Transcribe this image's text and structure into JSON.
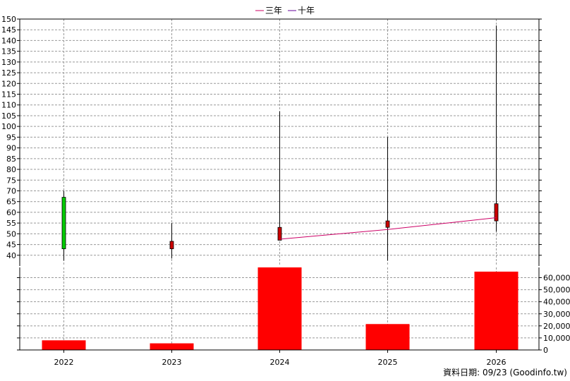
{
  "chart_data": [
    {
      "type": "candlestick",
      "x": [
        "2022",
        "2023",
        "2024",
        "2025",
        "2026"
      ],
      "ylim": [
        35,
        150
      ],
      "y_ticks": [
        40,
        45,
        50,
        55,
        60,
        65,
        70,
        75,
        80,
        85,
        90,
        95,
        100,
        105,
        110,
        115,
        120,
        125,
        130,
        135,
        140,
        145,
        150
      ],
      "grid": true,
      "legend": "top-center",
      "legend_entries": [
        {
          "name": "三年",
          "color": "#cc0066"
        },
        {
          "name": "十年",
          "color": "#660099"
        }
      ],
      "candles": [
        {
          "x": "2022",
          "open": 43,
          "high": 70,
          "low": 37.5,
          "close": 67,
          "color": "#00cc00"
        },
        {
          "x": "2023",
          "open": 46.5,
          "high": 55,
          "low": 38.5,
          "close": 43,
          "color": "#cc0000"
        },
        {
          "x": "2024",
          "open": 53,
          "high": 107,
          "low": 47,
          "close": 47,
          "color": "#cc0000"
        },
        {
          "x": "2025",
          "open": 56,
          "high": 95,
          "low": 37.5,
          "close": 53,
          "color": "#cc0000"
        },
        {
          "x": "2026",
          "open": 64,
          "high": 147,
          "low": 51,
          "close": 56,
          "color": "#cc0000"
        }
      ],
      "series": [
        {
          "name": "三年",
          "color": "#cc0066",
          "x": [
            "2024",
            "2025",
            "2026"
          ],
          "values": [
            47.5,
            52,
            57.5
          ]
        }
      ]
    },
    {
      "type": "bar",
      "categories": [
        "2022",
        "2023",
        "2024",
        "2025",
        "2026"
      ],
      "values": [
        8000,
        5500,
        68500,
        21500,
        65000
      ],
      "ylim": [
        0,
        68500
      ],
      "y_ticks": [
        0,
        10000,
        20000,
        30000,
        40000,
        50000,
        60000
      ],
      "y_tick_labels": [
        "0",
        "10,000",
        "20,000",
        "30,000",
        "40,000",
        "50,000",
        "60,000"
      ],
      "color": "#ff0000",
      "grid": true
    }
  ],
  "footer": "資料日期: 09/23  (Goodinfo.tw)"
}
